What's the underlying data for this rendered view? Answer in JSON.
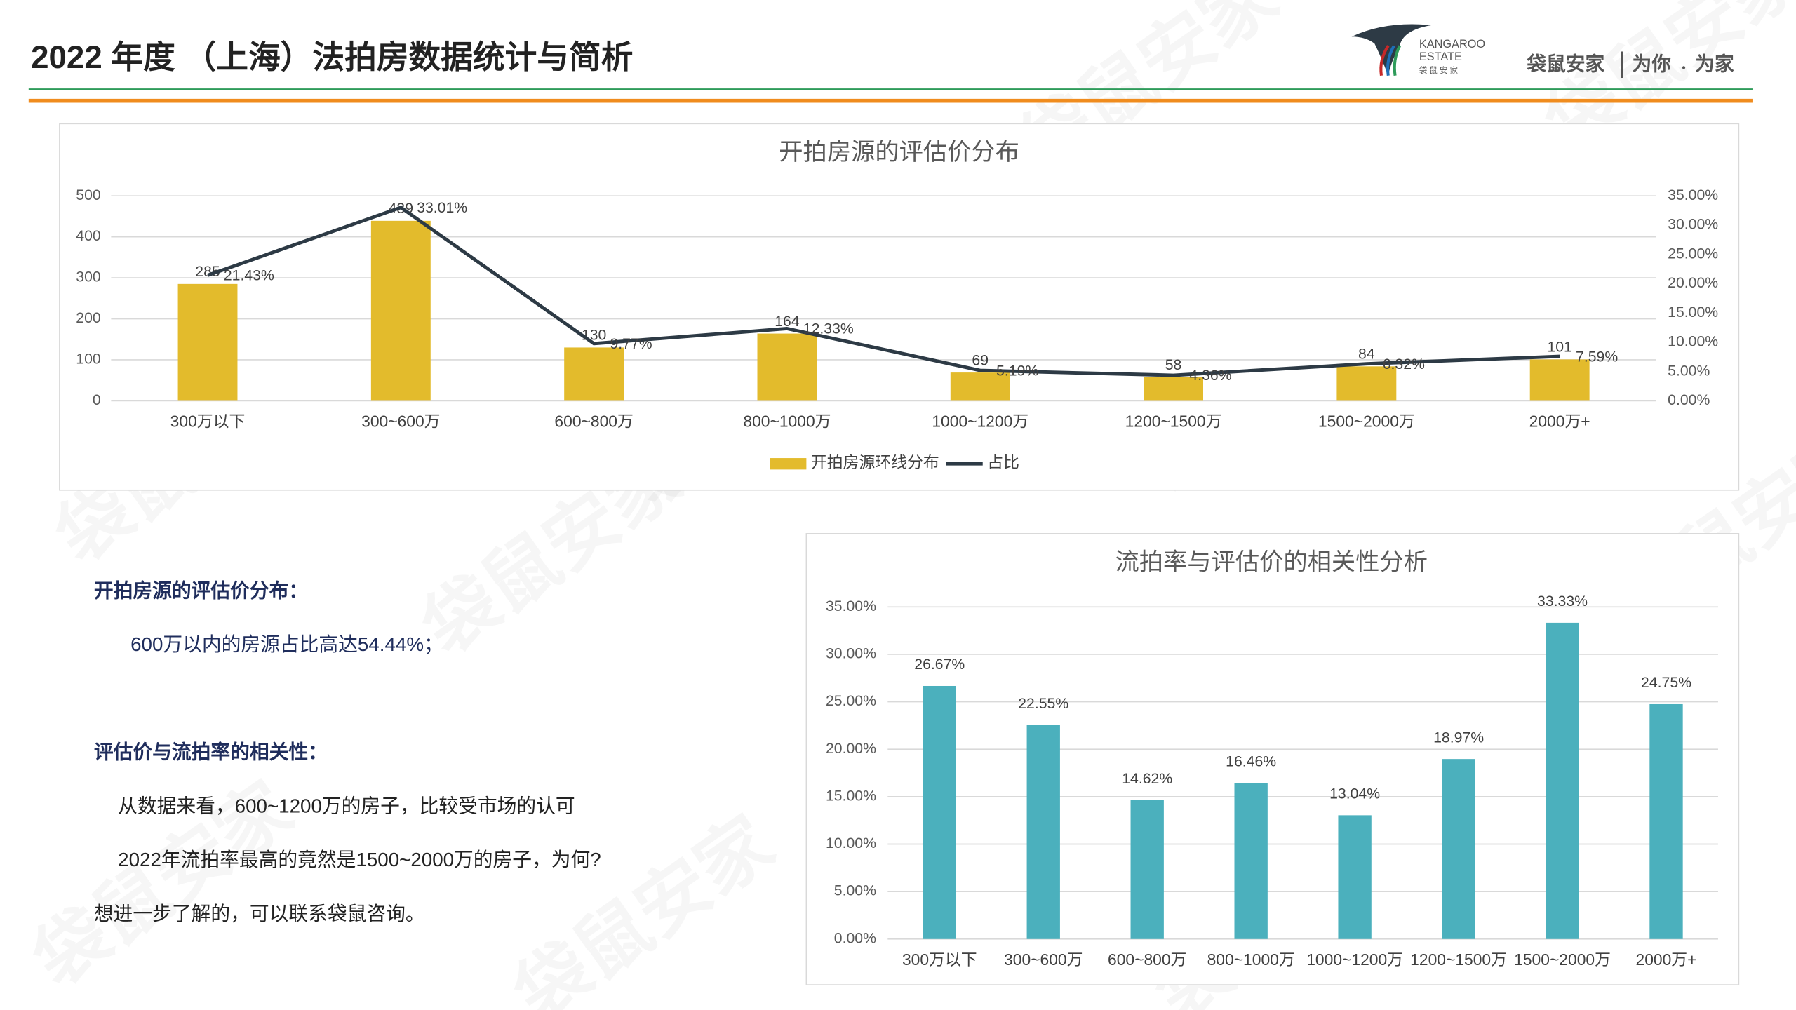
{
  "header": {
    "title": "2022 年度 （上海）法拍房数据统计与简析",
    "brand": {
      "name_en": [
        "KANGAROO",
        "ESTATE"
      ],
      "name_cn": "袋 鼠 安 家",
      "slogan": [
        "袋鼠安家",
        "为你",
        "为家"
      ]
    }
  },
  "watermark": "袋鼠安家",
  "chart_data": [
    {
      "type": "bar",
      "title": "开拍房源的评估价分布",
      "categories": [
        "300万以下",
        "300~600万",
        "600~800万",
        "800~1000万",
        "1000~1200万",
        "1200~1500万",
        "1500~2000万",
        "2000万+"
      ],
      "series": [
        {
          "name": "开拍房源环线分布",
          "type": "bar",
          "color": "#e3bb2c",
          "values": [
            285,
            439,
            130,
            164,
            69,
            58,
            84,
            101
          ]
        },
        {
          "name": "占比",
          "type": "line",
          "axis": "y2",
          "color": "#2d3a45",
          "values": [
            21.43,
            33.01,
            9.77,
            12.33,
            5.19,
            4.36,
            6.32,
            7.59
          ],
          "value_labels": [
            "21.43%",
            "33.01%",
            "9.77%",
            "12.33%",
            "5.19%",
            "4.36%",
            "6.32%",
            "7.59%"
          ]
        }
      ],
      "ylim": [
        0,
        500
      ],
      "yticks": [
        0,
        100,
        200,
        300,
        400,
        500
      ],
      "y2lim": [
        0,
        35
      ],
      "y2ticks": [
        {
          "value": 0,
          "label": "0.00%"
        },
        {
          "value": 5,
          "label": "5.00%"
        },
        {
          "value": 10,
          "label": "10.00%"
        },
        {
          "value": 15,
          "label": "15.00%"
        },
        {
          "value": 20,
          "label": "20.00%"
        },
        {
          "value": 25,
          "label": "25.00%"
        },
        {
          "value": 30,
          "label": "30.00%"
        },
        {
          "value": 35,
          "label": "35.00%"
        }
      ],
      "grid": true,
      "legend": "bottom"
    },
    {
      "type": "bar",
      "title": "流拍率与评估价的相关性分析",
      "categories": [
        "300万以下",
        "300~600万",
        "600~800万",
        "800~1000万",
        "1000~1200万",
        "1200~1500万",
        "1500~2000万",
        "2000万+"
      ],
      "series": [
        {
          "type": "bar",
          "color": "#4bb0bd",
          "values": [
            26.67,
            22.55,
            14.62,
            16.46,
            13.04,
            18.97,
            33.33,
            24.75
          ],
          "value_labels": [
            "26.67%",
            "22.55%",
            "14.62%",
            "16.46%",
            "13.04%",
            "18.97%",
            "33.33%",
            "24.75%"
          ]
        }
      ],
      "ylim": [
        0,
        35
      ],
      "yticks": [
        {
          "value": 0,
          "label": "0.00%"
        },
        {
          "value": 5,
          "label": "5.00%"
        },
        {
          "value": 10,
          "label": "10.00%"
        },
        {
          "value": 15,
          "label": "15.00%"
        },
        {
          "value": 20,
          "label": "20.00%"
        },
        {
          "value": 25,
          "label": "25.00%"
        },
        {
          "value": 30,
          "label": "30.00%"
        },
        {
          "value": 35,
          "label": "35.00%"
        }
      ],
      "grid": true
    }
  ],
  "notes": {
    "heading1": "开拍房源的评估价分布：",
    "point1": "600万以内的房源占比高达54.44%；",
    "heading2": "评估价与流拍率的相关性：",
    "lines": [
      "从数据来看，600~1200万的房子，比较受市场的认可",
      "2022年流拍率最高的竟然是1500~2000万的房子，为何?",
      "想进一步了解的，可以联系袋鼠咨询。"
    ]
  }
}
